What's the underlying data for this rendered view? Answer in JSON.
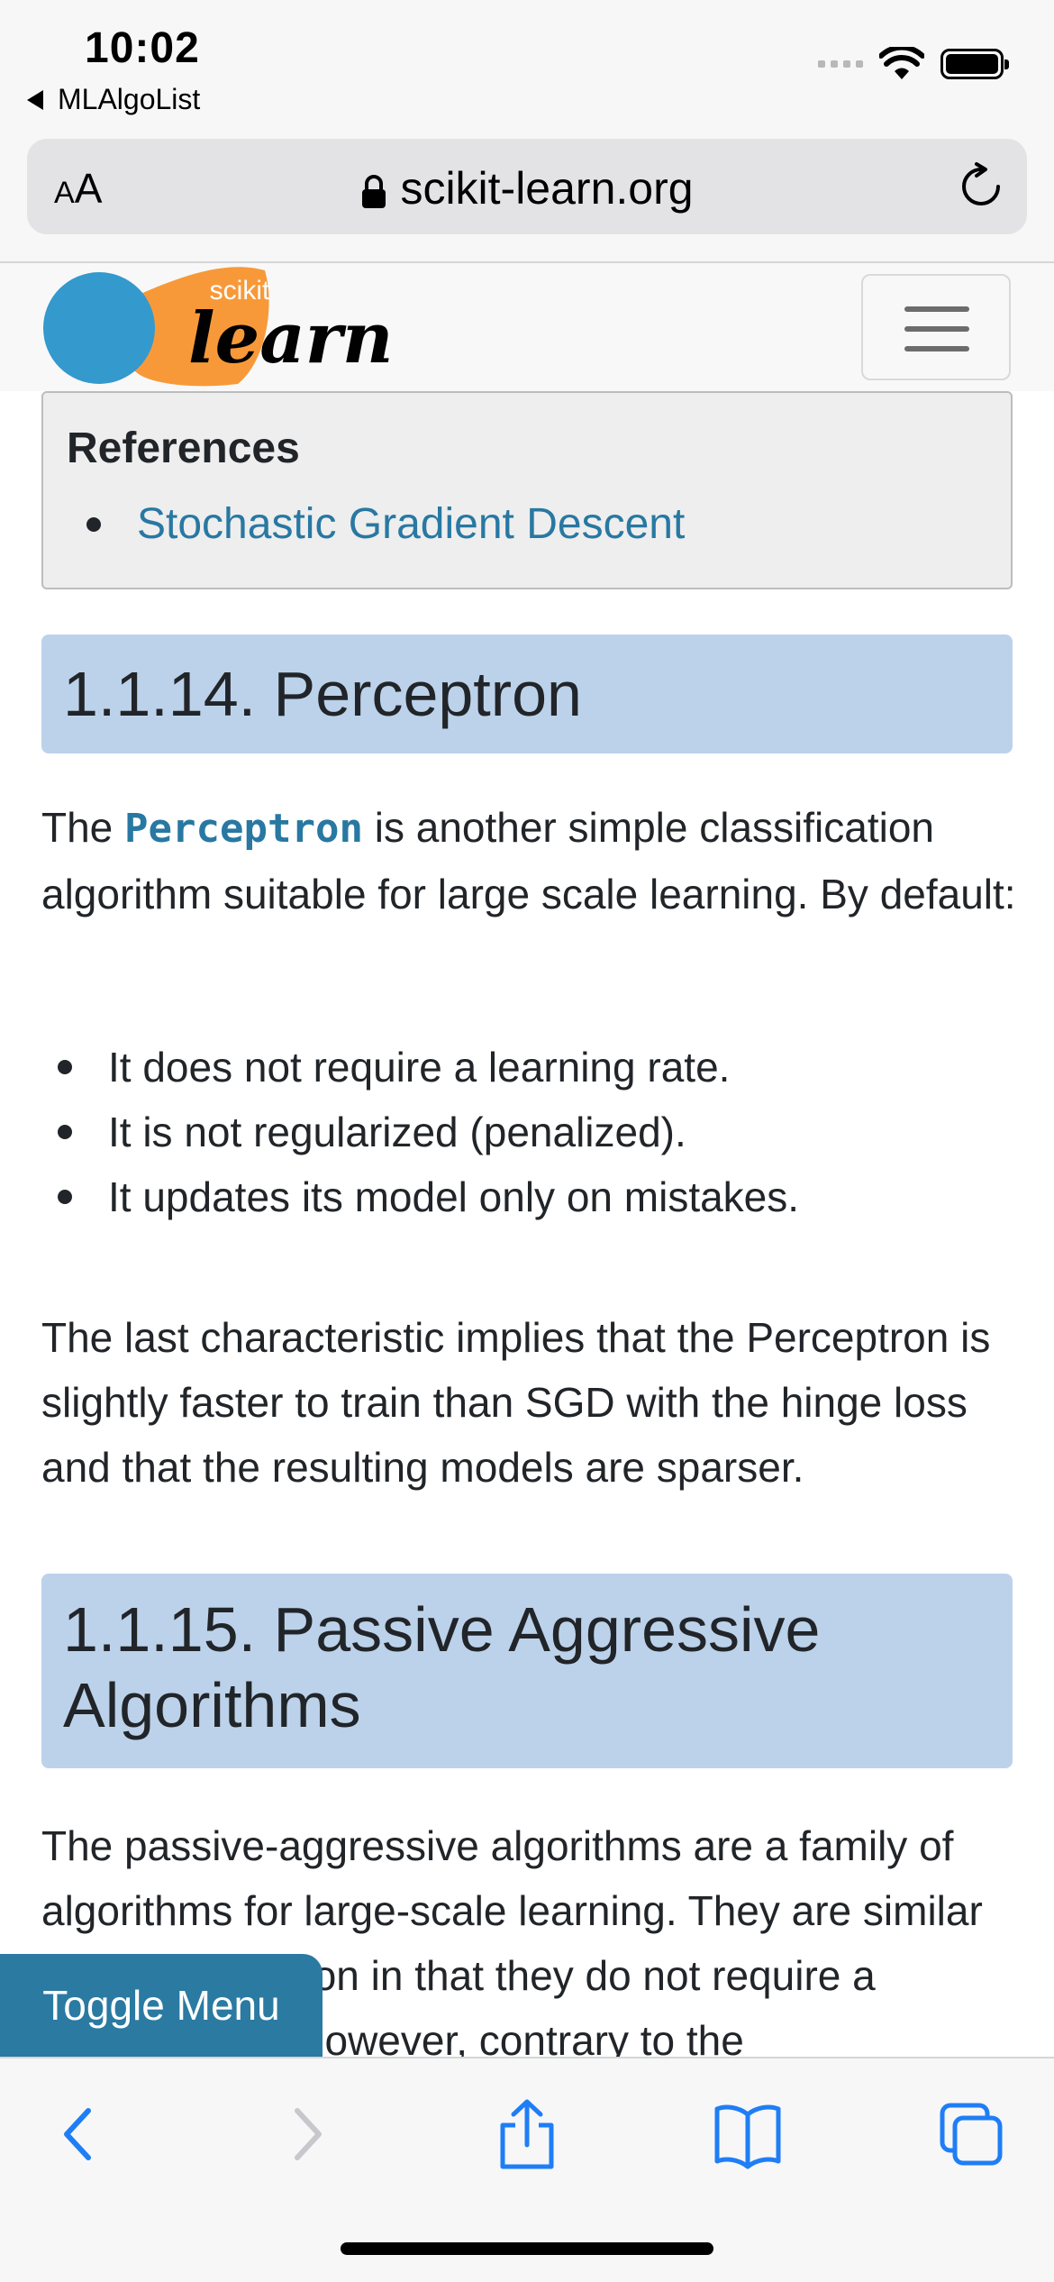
{
  "status_bar": {
    "time": "10:02",
    "back_app": "MLAlgoList",
    "icons": [
      "signal-icon",
      "wifi-icon",
      "battery-icon"
    ]
  },
  "address_bar": {
    "text_size_label_small": "A",
    "text_size_label_large": "A",
    "url": "scikit-learn.org",
    "icons": [
      "lock-icon",
      "reload-icon"
    ]
  },
  "site_nav": {
    "logo_small_text": "scikit",
    "logo_text": "learn",
    "colors": {
      "logo_blue": "#3499cd",
      "logo_orange": "#f89939"
    }
  },
  "references": {
    "title": "References",
    "items": [
      {
        "label": "Stochastic Gradient Descent"
      }
    ]
  },
  "perceptron_section": {
    "heading": "1.1.14. Perceptron",
    "intro_before": "The ",
    "intro_code": "Perceptron",
    "intro_after": " is another simple classification algorithm suitable for large scale learning. By default:",
    "bullets": [
      "It does not require a learning rate.",
      "It is not regularized (penalized).",
      "It updates its model only on mistakes."
    ],
    "conclusion": "The last characteristic implies that the Perceptron is slightly faster to train than SGD with the hinge loss and that the resulting models are sparser."
  },
  "passive_section": {
    "heading_line1": "1.1.15. Passive Aggressive",
    "heading_line2": "Algorithms",
    "body": "The passive-aggressive algorithms are a family of algorithms for large-scale learning. They are similar to the Perceptron in that they do not require a learning rate. However, contrary to the"
  },
  "toggle_menu": {
    "label": "Toggle Menu"
  },
  "toolbar": {
    "icons": [
      "back-icon",
      "forward-icon",
      "share-icon",
      "bookmarks-icon",
      "tabs-icon"
    ]
  },
  "colors": {
    "link": "#2878a2",
    "heading_bg": "#bcd2ea",
    "toggle_bg": "#2a7aa2",
    "ios_blue": "#1f7ef6"
  }
}
